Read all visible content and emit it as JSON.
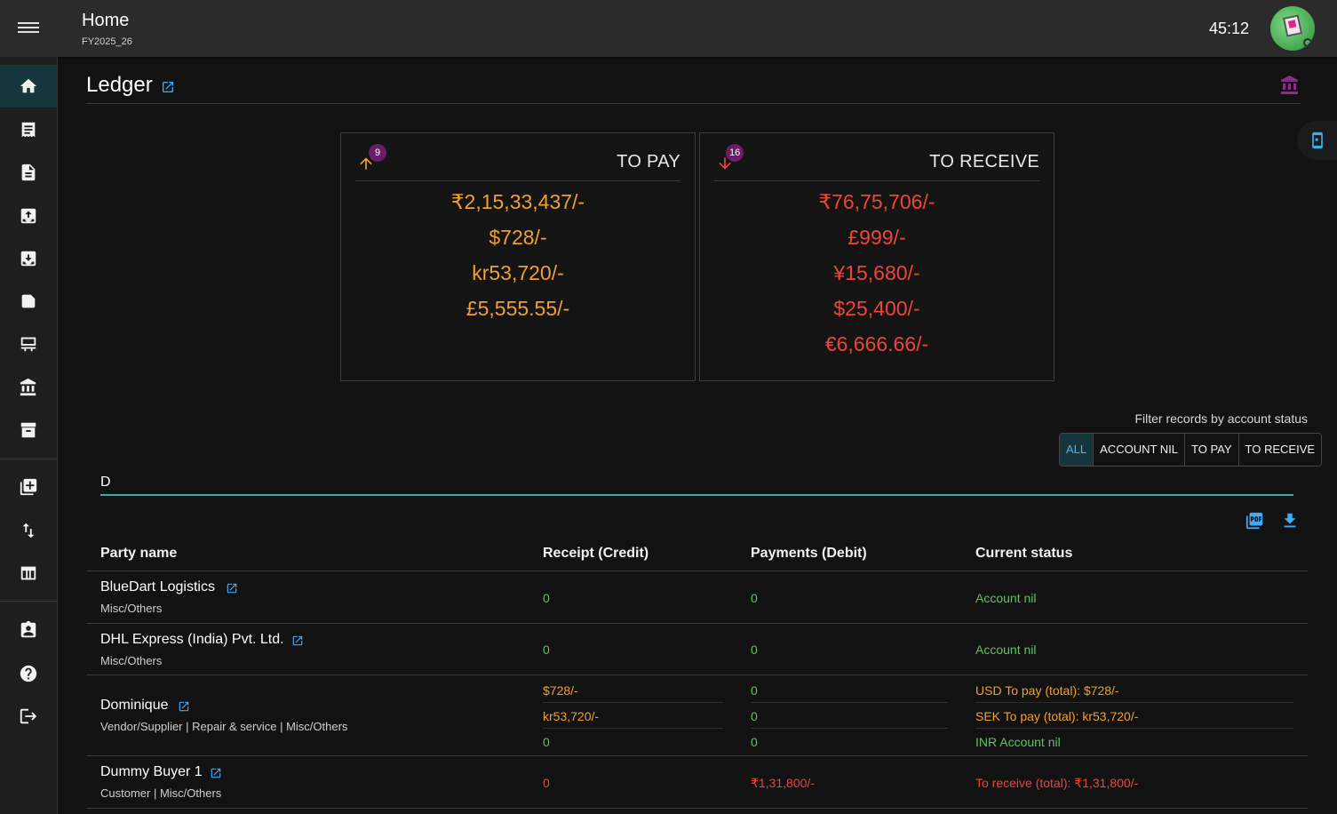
{
  "header": {
    "title": "Home",
    "subtitle": "FY2025_26",
    "timer": "45:12"
  },
  "sidebar": {
    "items": [
      {
        "icon": "home-icon",
        "active": true
      },
      {
        "icon": "receipt-icon"
      },
      {
        "icon": "document-icon"
      },
      {
        "icon": "upload-box-icon"
      },
      {
        "icon": "download-box-icon"
      },
      {
        "icon": "label-icon"
      },
      {
        "icon": "desk-icon"
      },
      {
        "icon": "bank-icon"
      },
      {
        "icon": "archive-icon"
      },
      {
        "icon": "add-box-icon"
      },
      {
        "icon": "swap-vert-icon"
      },
      {
        "icon": "table-icon"
      },
      {
        "icon": "contact-icon"
      },
      {
        "icon": "help-icon"
      },
      {
        "icon": "logout-icon"
      }
    ]
  },
  "page": {
    "title": "Ledger"
  },
  "summary": {
    "to_pay": {
      "label": "TO PAY",
      "count": "9",
      "values": [
        "₹2,15,33,437/-",
        "$728/-",
        "kr53,720/-",
        "£5,555.55/-"
      ]
    },
    "to_receive": {
      "label": "TO RECEIVE",
      "count": "16",
      "values": [
        "₹76,75,706/-",
        "£999/-",
        "¥15,680/-",
        "$25,400/-",
        "€6,666.66/-"
      ]
    }
  },
  "filter": {
    "label": "Filter records by account status",
    "options": [
      "ALL",
      "ACCOUNT NIL",
      "TO PAY",
      "TO RECEIVE"
    ],
    "selected": "ALL"
  },
  "search": {
    "value": "D"
  },
  "table": {
    "headers": {
      "party": "Party name",
      "receipt": "Receipt (Credit)",
      "payment": "Payments (Debit)",
      "status": "Current status"
    },
    "rows": [
      {
        "name": "BlueDart Logistics",
        "category": "Misc/Others",
        "lines": [
          {
            "receipt": "0",
            "payment": "0",
            "status": "Account nil",
            "tone": "green"
          }
        ]
      },
      {
        "name": "DHL Express (India) Pvt. Ltd.",
        "category": "Misc/Others",
        "lines": [
          {
            "receipt": "0",
            "payment": "0",
            "status": "Account nil",
            "tone": "green"
          }
        ]
      },
      {
        "name": "Dominique",
        "category": "Vendor/Supplier | Repair & service | Misc/Others",
        "lines": [
          {
            "receipt": "$728/-",
            "payment": "0",
            "status": "USD To pay (total): $728/-",
            "tone": "orange"
          },
          {
            "receipt": "kr53,720/-",
            "payment": "0",
            "status": "SEK To pay (total): kr53,720/-",
            "tone": "orange"
          },
          {
            "receipt": "0",
            "payment": "0",
            "status": "INR Account nil",
            "tone": "green"
          }
        ]
      },
      {
        "name": "Dummy Buyer 1",
        "category": "Customer | Misc/Others",
        "lines": [
          {
            "receipt": "0",
            "payment": "₹1,31,800/-",
            "status": "To receive (total): ₹1,31,800/-",
            "tone": "red"
          }
        ]
      }
    ]
  },
  "colors": {
    "accent": "#2ab0b0",
    "pay": "#f0a030",
    "receive": "#f0443a",
    "nil": "#5fc35f",
    "link": "#3fa9f5"
  }
}
